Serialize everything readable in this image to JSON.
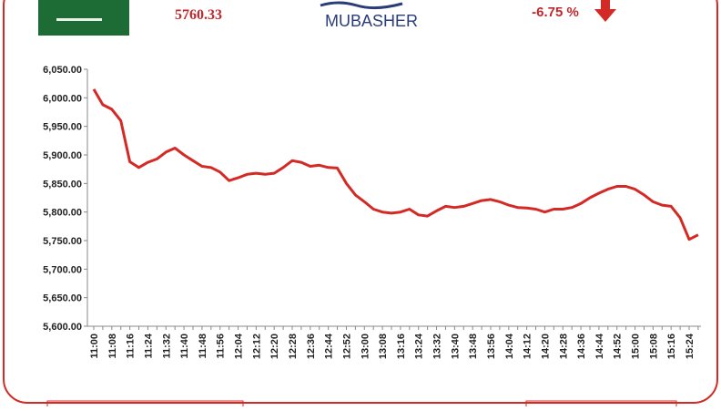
{
  "header": {
    "index_value": "5760.33",
    "change": "-6.75 %",
    "logo": "MUBASHER"
  },
  "chart_data": {
    "type": "line",
    "color": "#d42a25",
    "categories": [
      "11:00",
      null,
      "11:08",
      null,
      "11:16",
      null,
      "11:24",
      null,
      "11:32",
      null,
      "11:40",
      null,
      "11:48",
      null,
      "11:56",
      null,
      "12:04",
      null,
      "12:12",
      null,
      "12:20",
      null,
      "12:28",
      null,
      "12:36",
      null,
      "12:44",
      null,
      "12:52",
      null,
      "13:00",
      null,
      "13:08",
      null,
      "13:16",
      null,
      "13:24",
      null,
      "13:32",
      null,
      "13:40",
      null,
      "13:48",
      null,
      "13:56",
      null,
      "14:04",
      null,
      "14:12",
      null,
      "14:20",
      null,
      "14:28",
      null,
      "14:36",
      null,
      "14:44",
      null,
      "14:52",
      null,
      "15:00",
      null,
      "15:08",
      null,
      "15:16",
      null,
      "15:24",
      null
    ],
    "values": [
      6015,
      5988,
      5980,
      5960,
      5888,
      5878,
      5887,
      5893,
      5905,
      5912,
      5900,
      5890,
      5880,
      5878,
      5870,
      5855,
      5860,
      5866,
      5868,
      5866,
      5868,
      5878,
      5890,
      5887,
      5880,
      5882,
      5878,
      5877,
      5850,
      5830,
      5818,
      5805,
      5800,
      5798,
      5800,
      5805,
      5795,
      5793,
      5802,
      5810,
      5808,
      5810,
      5815,
      5820,
      5822,
      5818,
      5812,
      5808,
      5807,
      5805,
      5800,
      5805,
      5805,
      5808,
      5815,
      5825,
      5833,
      5840,
      5845,
      5845,
      5840,
      5830,
      5818,
      5812,
      5810,
      5790,
      5752,
      5760
    ],
    "ylim": [
      5600,
      6050
    ],
    "yticks": [
      {
        "value": 5600,
        "label": "5,600.00"
      },
      {
        "value": 5650,
        "label": "5,650.00"
      },
      {
        "value": 5700,
        "label": "5,700.00"
      },
      {
        "value": 5750,
        "label": "5,750.00"
      },
      {
        "value": 5800,
        "label": "5,800.00"
      },
      {
        "value": 5850,
        "label": "5,850.00"
      },
      {
        "value": 5900,
        "label": "5,900.00"
      },
      {
        "value": 5950,
        "label": "5,950.00"
      },
      {
        "value": 6000,
        "label": "6,000.00"
      },
      {
        "value": 6050,
        "label": "6,050.00"
      }
    ]
  }
}
